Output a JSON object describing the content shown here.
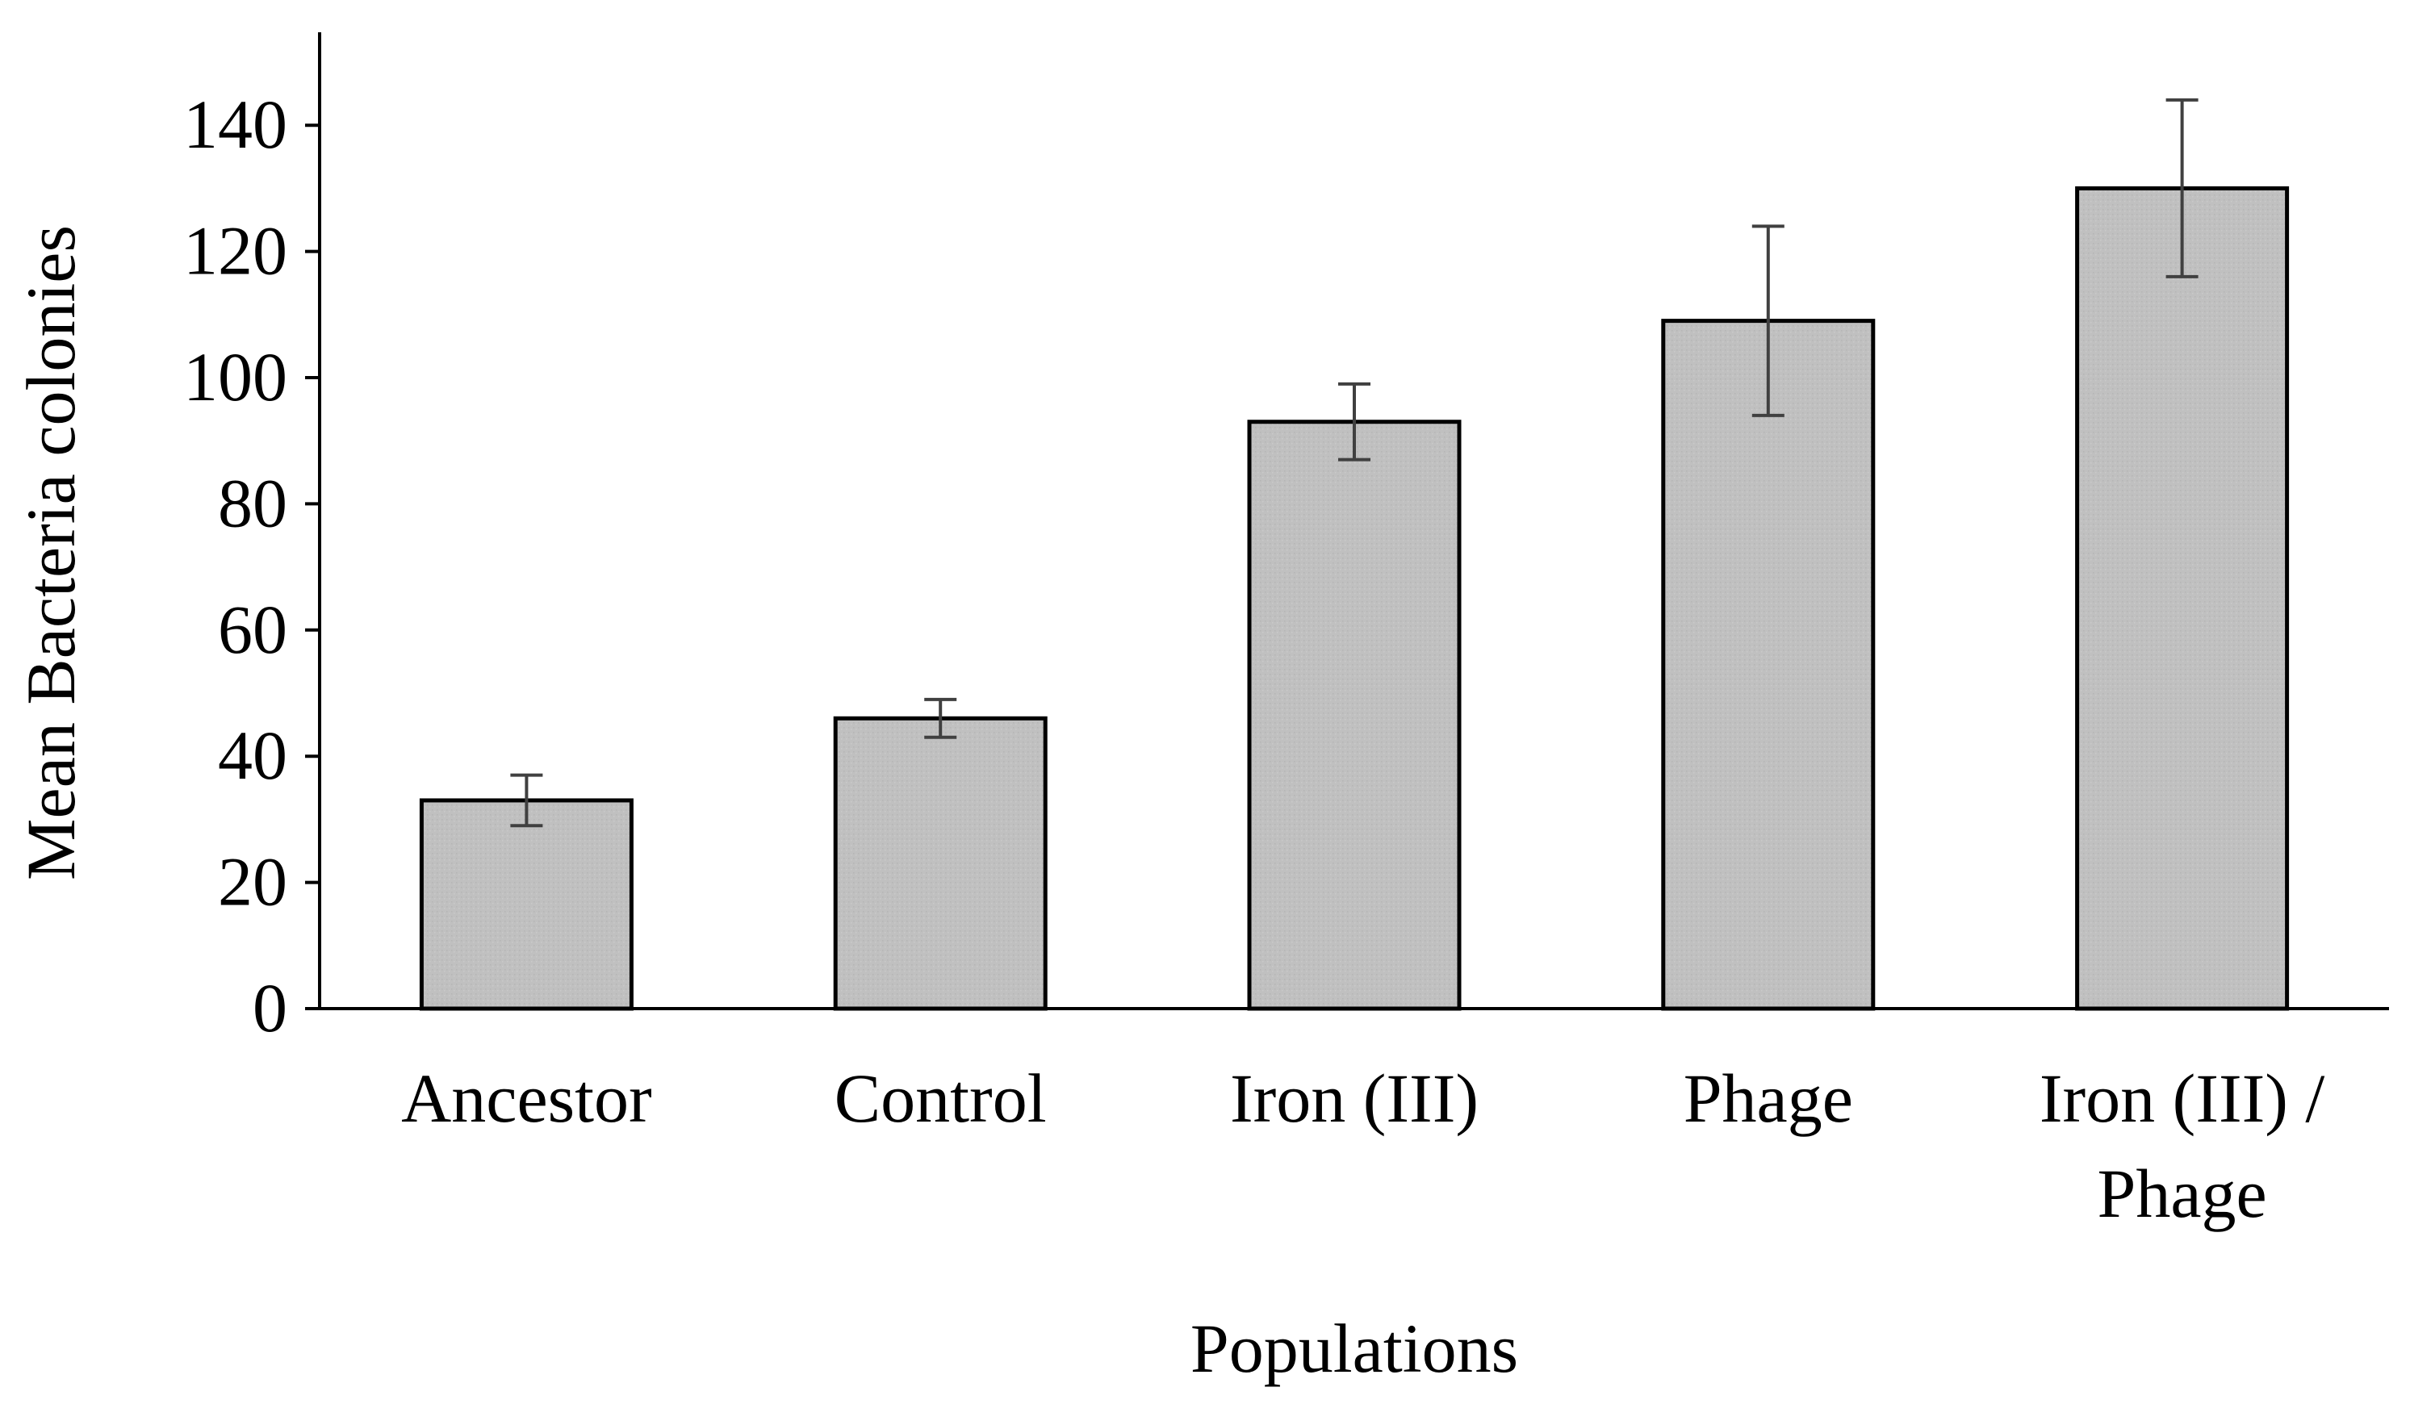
{
  "chart_data": {
    "type": "bar",
    "title": "",
    "categories": [
      {
        "lines": [
          "Ancestor"
        ]
      },
      {
        "lines": [
          "Control"
        ]
      },
      {
        "lines": [
          "Iron (III)"
        ]
      },
      {
        "lines": [
          "Phage"
        ]
      },
      {
        "lines": [
          "Iron (III) /",
          "Phage"
        ]
      }
    ],
    "values": [
      33,
      46,
      93,
      109,
      130
    ],
    "error": [
      4,
      3,
      6,
      15,
      14
    ],
    "xlabel": "Populations",
    "ylabel": "Mean Bacteria colonies",
    "ylim": [
      0,
      150
    ],
    "yticks": [
      0,
      20,
      40,
      60,
      80,
      100,
      120,
      140
    ],
    "grid": false,
    "legend": "none"
  },
  "colors": {
    "bar_fill": "#c0c0c0",
    "bar_stroke": "#000000",
    "error_bar": "#404040",
    "axis": "#000000"
  }
}
